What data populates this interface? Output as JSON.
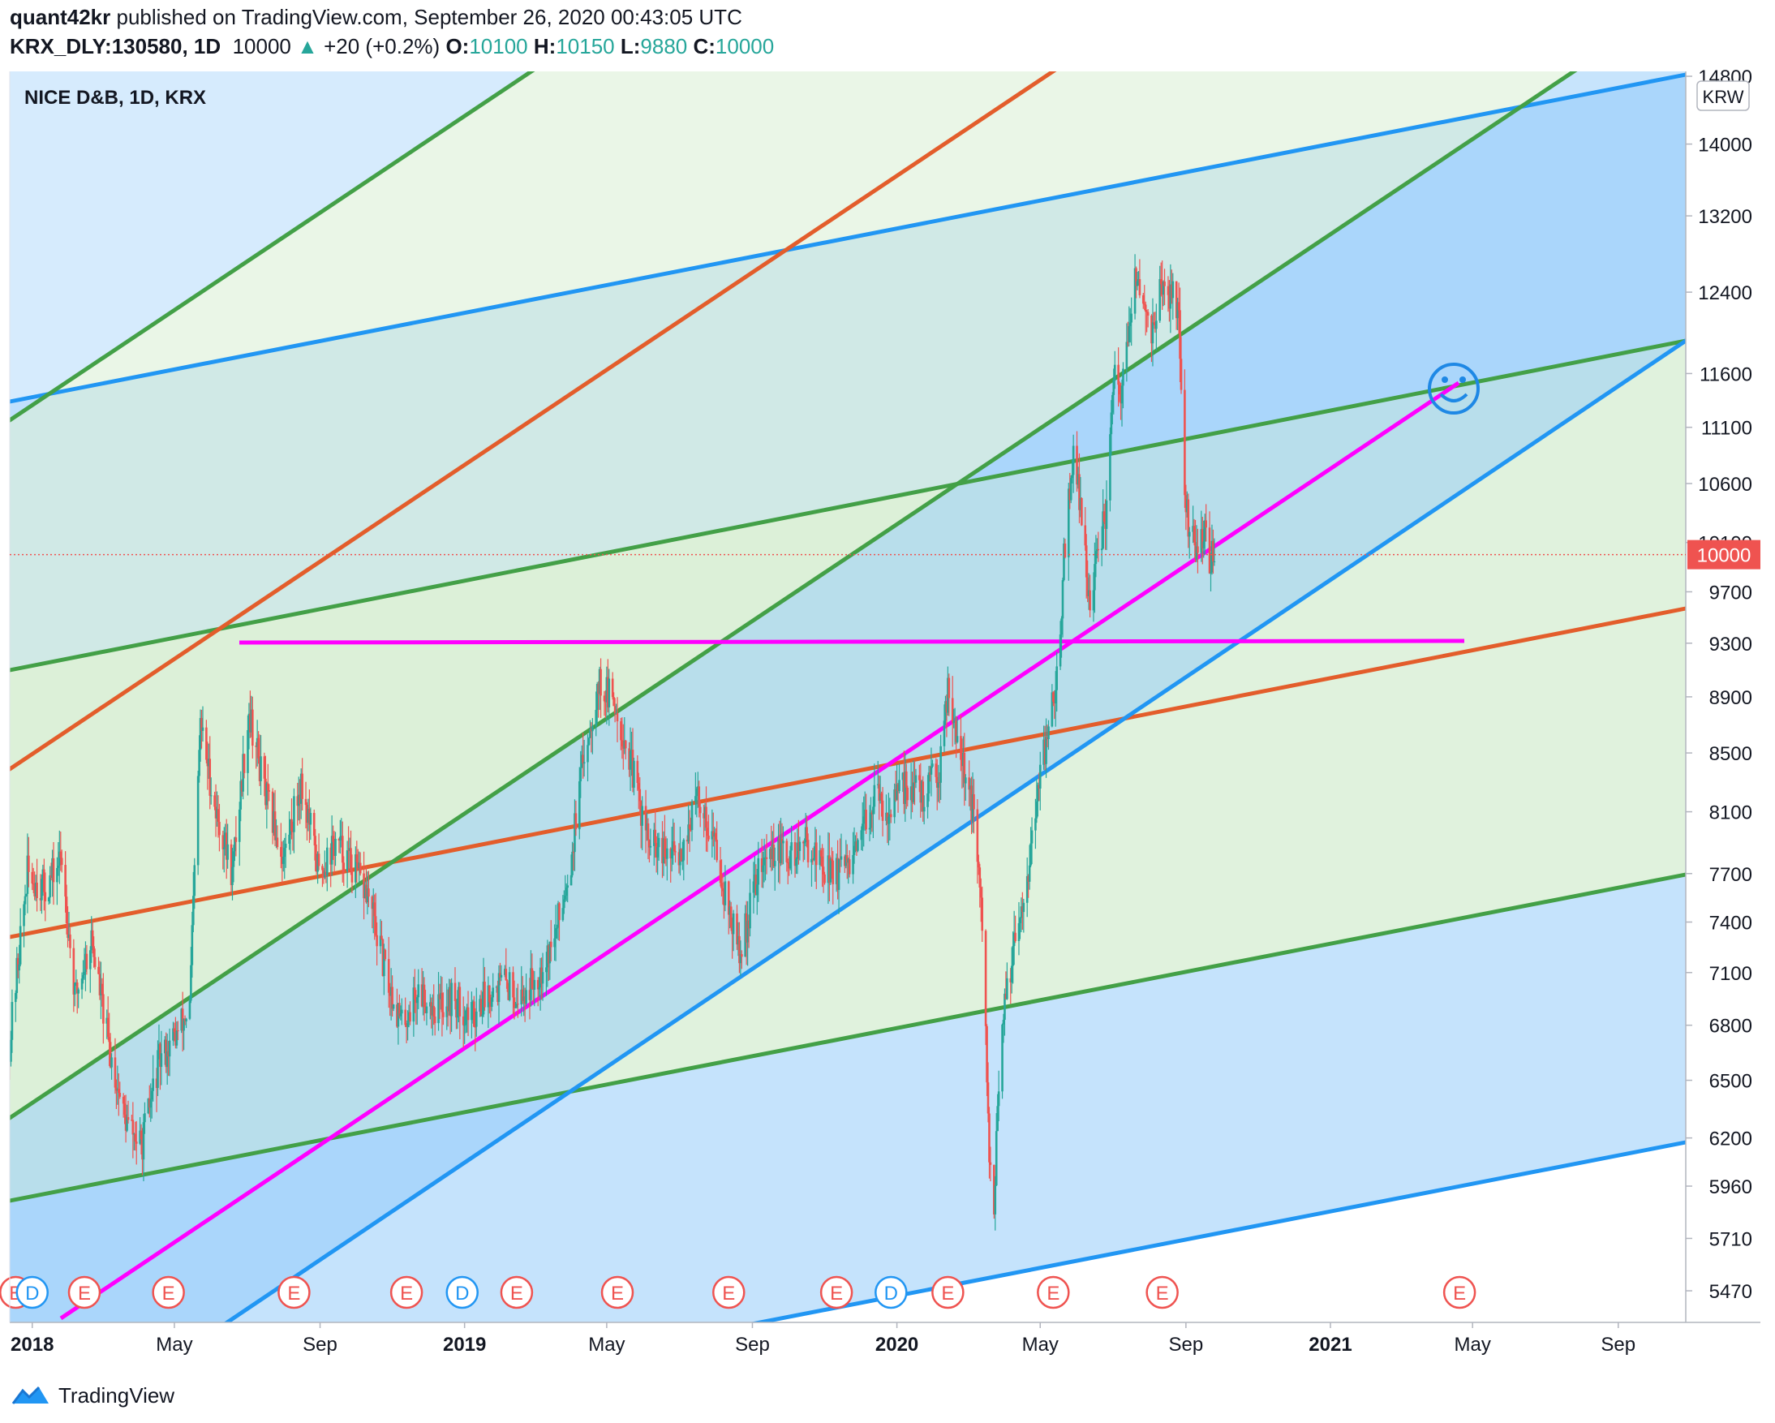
{
  "header": {
    "author": "quant42kr",
    "published_text": "published on TradingView.com, September 26, 2020 00:43:05 UTC",
    "symbol": "KRX_DLY:130580, 1D",
    "last": "10000",
    "change": "+20 (+0.2%)",
    "o_label": "O:",
    "o_value": "10100",
    "h_label": "H:",
    "h_value": "10150",
    "l_label": "L:",
    "l_value": "9880",
    "c_label": "C:",
    "c_value": "10000"
  },
  "footer": {
    "brand": "TradingView"
  },
  "chart_data": {
    "type": "candlestick",
    "title": "NICE D&B, 1D, KRX",
    "currency": "KRW",
    "scale": "log",
    "ylim": [
      5380,
      14800
    ],
    "y_ticks": [
      14800,
      14000,
      13200,
      12400,
      11600,
      11100,
      10600,
      10100,
      9700,
      9300,
      8900,
      8500,
      8100,
      7700,
      7400,
      7100,
      6800,
      6500,
      6200,
      5960,
      5710,
      5470
    ],
    "last_price_label": "10000",
    "x_range": [
      "2017-12-13",
      "2021-10-28"
    ],
    "x_ticks": [
      {
        "date": "2018-01-01",
        "label": "2018",
        "bold": true
      },
      {
        "date": "2018-05-01",
        "label": "May",
        "bold": false
      },
      {
        "date": "2018-09-01",
        "label": "Sep",
        "bold": false
      },
      {
        "date": "2019-01-01",
        "label": "2019",
        "bold": true
      },
      {
        "date": "2019-05-01",
        "label": "May",
        "bold": false
      },
      {
        "date": "2019-09-01",
        "label": "Sep",
        "bold": false
      },
      {
        "date": "2020-01-01",
        "label": "2020",
        "bold": true
      },
      {
        "date": "2020-05-01",
        "label": "May",
        "bold": false
      },
      {
        "date": "2020-09-01",
        "label": "Sep",
        "bold": false
      },
      {
        "date": "2021-01-01",
        "label": "2021",
        "bold": true
      },
      {
        "date": "2021-05-01",
        "label": "May",
        "bold": false
      },
      {
        "date": "2021-09-01",
        "label": "Sep",
        "bold": false
      }
    ],
    "price_path": [
      [
        "2017-12-13",
        6700
      ],
      [
        "2017-12-28",
        7700
      ],
      [
        "2018-01-12",
        7600
      ],
      [
        "2018-01-26",
        7800
      ],
      [
        "2018-02-06",
        6950
      ],
      [
        "2018-02-20",
        7300
      ],
      [
        "2018-03-06",
        6700
      ],
      [
        "2018-03-20",
        6300
      ],
      [
        "2018-04-03",
        6150
      ],
      [
        "2018-04-18",
        6600
      ],
      [
        "2018-05-03",
        6750
      ],
      [
        "2018-05-14",
        6900
      ],
      [
        "2018-05-23",
        8700
      ],
      [
        "2018-06-05",
        8100
      ],
      [
        "2018-06-19",
        7700
      ],
      [
        "2018-07-03",
        8800
      ],
      [
        "2018-07-17",
        8200
      ],
      [
        "2018-08-01",
        7800
      ],
      [
        "2018-08-16",
        8300
      ],
      [
        "2018-08-31",
        7700
      ],
      [
        "2018-09-14",
        7900
      ],
      [
        "2018-09-28",
        7750
      ],
      [
        "2018-10-12",
        7550
      ],
      [
        "2018-10-26",
        7100
      ],
      [
        "2018-11-09",
        6800
      ],
      [
        "2018-11-23",
        7000
      ],
      [
        "2018-12-07",
        6900
      ],
      [
        "2018-12-21",
        6950
      ],
      [
        "2019-01-07",
        6850
      ],
      [
        "2019-01-21",
        7000
      ],
      [
        "2019-02-04",
        7050
      ],
      [
        "2019-02-18",
        6950
      ],
      [
        "2019-03-04",
        7100
      ],
      [
        "2019-03-18",
        7300
      ],
      [
        "2019-04-01",
        7800
      ],
      [
        "2019-04-12",
        8500
      ],
      [
        "2019-04-24",
        9000
      ],
      [
        "2019-05-08",
        8850
      ],
      [
        "2019-05-22",
        8400
      ],
      [
        "2019-06-05",
        7900
      ],
      [
        "2019-06-19",
        7800
      ],
      [
        "2019-07-03",
        7850
      ],
      [
        "2019-07-17",
        8200
      ],
      [
        "2019-07-31",
        7900
      ],
      [
        "2019-08-14",
        7400
      ],
      [
        "2019-08-22",
        7200
      ],
      [
        "2019-09-05",
        7700
      ],
      [
        "2019-09-19",
        7850
      ],
      [
        "2019-10-03",
        7800
      ],
      [
        "2019-10-17",
        7900
      ],
      [
        "2019-10-31",
        7750
      ],
      [
        "2019-11-14",
        7700
      ],
      [
        "2019-11-28",
        7800
      ],
      [
        "2019-12-12",
        8200
      ],
      [
        "2019-12-26",
        8100
      ],
      [
        "2020-01-09",
        8300
      ],
      [
        "2020-01-23",
        8200
      ],
      [
        "2020-02-06",
        8400
      ],
      [
        "2020-02-13",
        9000
      ],
      [
        "2020-02-24",
        8500
      ],
      [
        "2020-03-05",
        8100
      ],
      [
        "2020-03-12",
        7500
      ],
      [
        "2020-03-19",
        6100
      ],
      [
        "2020-03-23",
        5900
      ],
      [
        "2020-03-30",
        6800
      ],
      [
        "2020-04-09",
        7300
      ],
      [
        "2020-04-20",
        7700
      ],
      [
        "2020-04-29",
        8200
      ],
      [
        "2020-05-08",
        8700
      ],
      [
        "2020-05-15",
        9000
      ],
      [
        "2020-05-22",
        10100
      ],
      [
        "2020-05-29",
        10900
      ],
      [
        "2020-06-05",
        10300
      ],
      [
        "2020-06-12",
        9600
      ],
      [
        "2020-06-19",
        10000
      ],
      [
        "2020-06-26",
        10400
      ],
      [
        "2020-07-03",
        11600
      ],
      [
        "2020-07-08",
        11300
      ],
      [
        "2020-07-13",
        11800
      ],
      [
        "2020-07-20",
        12500
      ],
      [
        "2020-07-27",
        12300
      ],
      [
        "2020-08-04",
        12000
      ],
      [
        "2020-08-11",
        12500
      ],
      [
        "2020-08-18",
        12200
      ],
      [
        "2020-08-21",
        12600
      ],
      [
        "2020-08-26",
        12100
      ],
      [
        "2020-08-31",
        10400
      ],
      [
        "2020-09-07",
        10100
      ],
      [
        "2020-09-11",
        9900
      ],
      [
        "2020-09-16",
        10200
      ],
      [
        "2020-09-22",
        9950
      ],
      [
        "2020-09-25",
        10000
      ]
    ],
    "earnings_markers": [
      "2017-12-18",
      "2018-02-14",
      "2018-04-26",
      "2018-08-10",
      "2018-11-13",
      "2019-02-14",
      "2019-05-10",
      "2019-08-12",
      "2019-11-11",
      "2020-02-13",
      "2020-05-12",
      "2020-08-12",
      "2021-04-20"
    ],
    "dividend_markers": [
      "2018-01-01",
      "2018-12-30",
      "2019-12-27"
    ],
    "colors": {
      "up": "#26a69a",
      "down": "#ef5350",
      "blue_line": "#2196f3",
      "green_line": "#43a047",
      "orange_line": "#e35d2b",
      "magenta": "#ff00ff",
      "blue_fill": "#bbdefb",
      "green_fill": "#d8efd4",
      "label_bg": "#ef5350"
    },
    "icons": [
      "smiley-icon",
      "earnings-e-icon",
      "dividend-d-icon",
      "tradingview-logo-icon"
    ]
  }
}
